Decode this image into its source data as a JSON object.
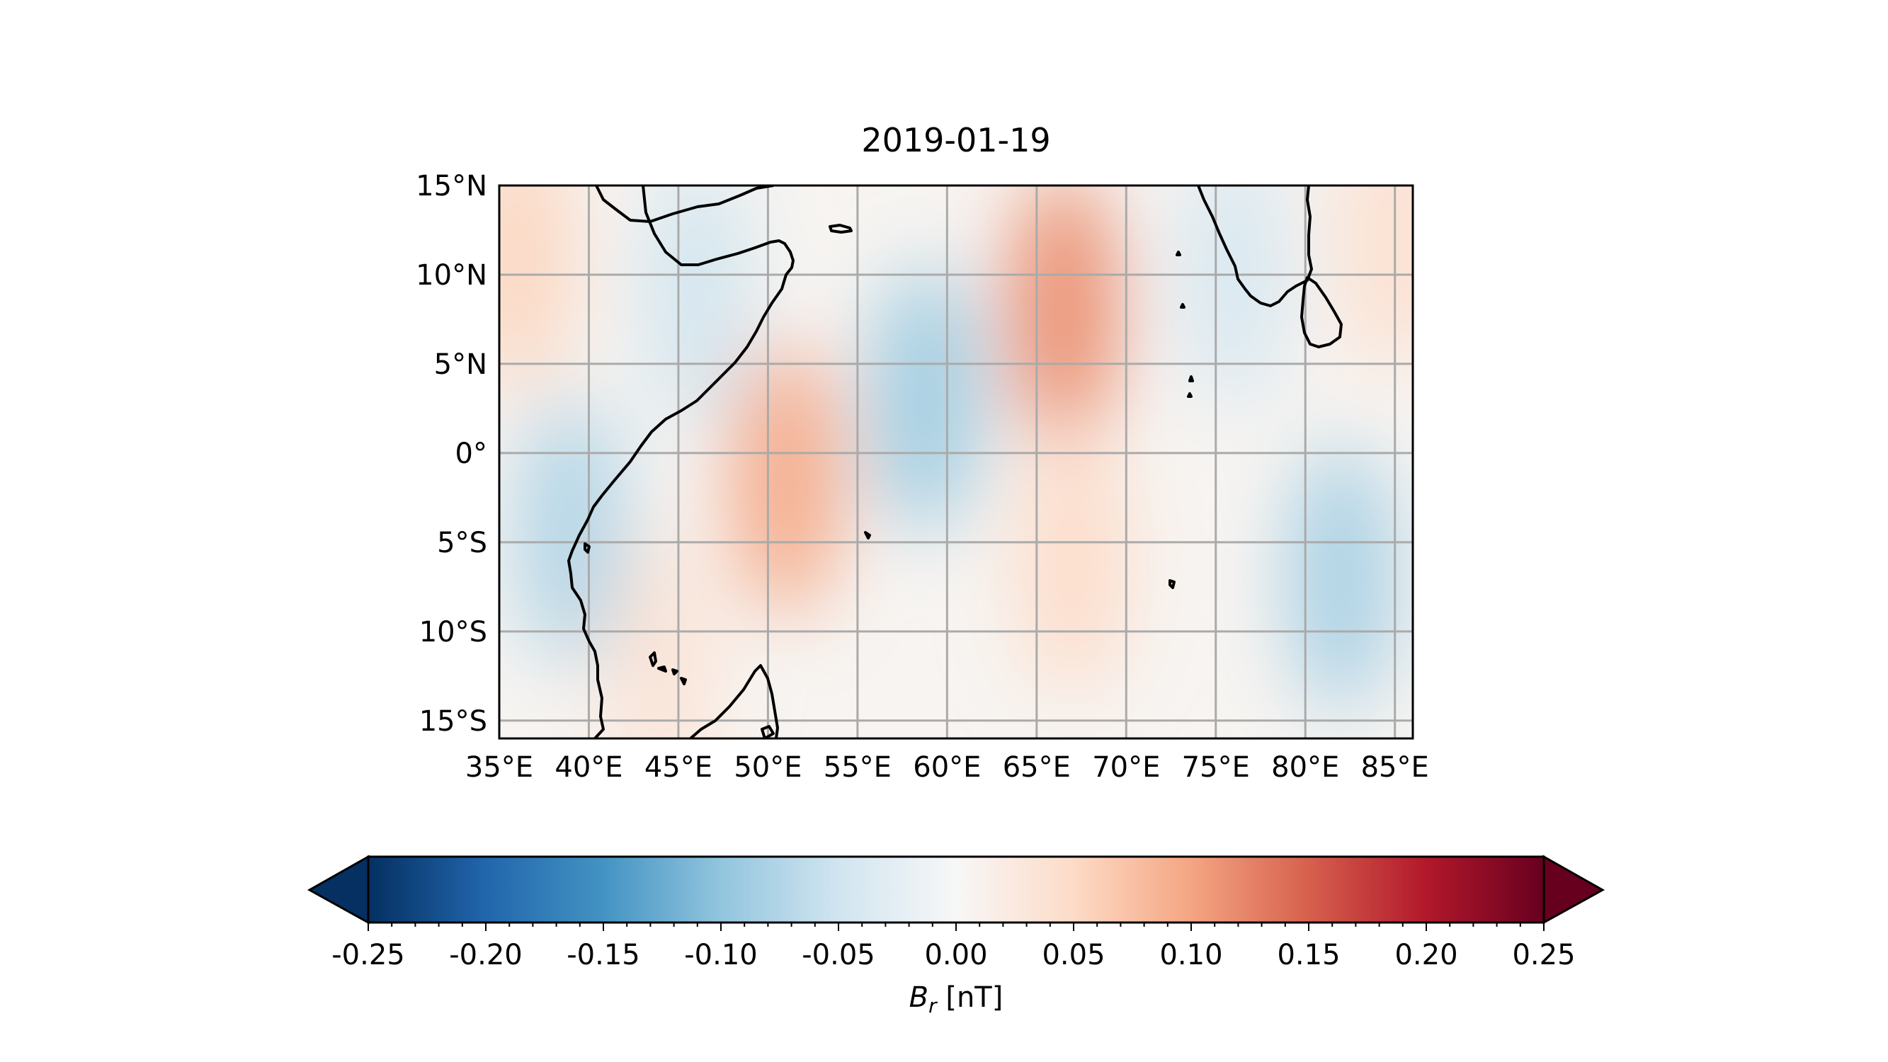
{
  "title": "2019-01-19",
  "map": {
    "lon_range": [
      35,
      86
    ],
    "lat_range": [
      -16,
      15
    ],
    "lon_ticks": [
      35,
      40,
      45,
      50,
      55,
      60,
      65,
      70,
      75,
      80,
      85
    ],
    "lon_tick_labels": [
      "35°E",
      "40°E",
      "45°E",
      "50°E",
      "55°E",
      "60°E",
      "65°E",
      "70°E",
      "75°E",
      "80°E",
      "85°E"
    ],
    "lat_ticks": [
      15,
      10,
      5,
      0,
      -5,
      -10,
      -15
    ],
    "lat_tick_labels": [
      "15°N",
      "10°N",
      "5°N",
      "0°",
      "5°S",
      "10°S",
      "15°S"
    ],
    "gridlines": true,
    "coastlines": true,
    "field_anomalies": [
      {
        "lon": 66.5,
        "lat": 8.0,
        "value": 0.085
      },
      {
        "lon": 51.0,
        "lat": -1.5,
        "value": 0.07
      },
      {
        "lon": 58.8,
        "lat": 3.0,
        "value": -0.065
      },
      {
        "lon": 82.0,
        "lat": -7.0,
        "value": -0.06
      },
      {
        "lon": 39.0,
        "lat": -4.5,
        "value": -0.055
      },
      {
        "lon": 46.0,
        "lat": 9.0,
        "value": -0.035
      },
      {
        "lon": 36.0,
        "lat": 11.0,
        "value": 0.04
      },
      {
        "lon": 67.0,
        "lat": -6.0,
        "value": 0.035
      },
      {
        "lon": 76.0,
        "lat": 10.0,
        "value": -0.03
      },
      {
        "lon": 44.0,
        "lat": -12.0,
        "value": 0.025
      },
      {
        "lon": 85.0,
        "lat": 12.0,
        "value": 0.03
      }
    ]
  },
  "colorbar": {
    "colormap": "RdBu_r",
    "range": [
      -0.25,
      0.25
    ],
    "ticks": [
      -0.25,
      -0.2,
      -0.15,
      -0.1,
      -0.05,
      0.0,
      0.05,
      0.1,
      0.15,
      0.2,
      0.25
    ],
    "tick_labels": [
      "-0.25",
      "-0.20",
      "-0.15",
      "-0.10",
      "-0.05",
      "0.00",
      "0.05",
      "0.10",
      "0.15",
      "0.20",
      "0.25"
    ],
    "label_symbol": "B",
    "label_subscript": "r",
    "label_unit": " [nT]",
    "extend": "both",
    "colors": [
      "#053061",
      "#2166ac",
      "#4393c3",
      "#92c5de",
      "#d1e5f0",
      "#f7f7f7",
      "#fddbc7",
      "#f4a582",
      "#d6604d",
      "#b2182b",
      "#67001f"
    ]
  }
}
